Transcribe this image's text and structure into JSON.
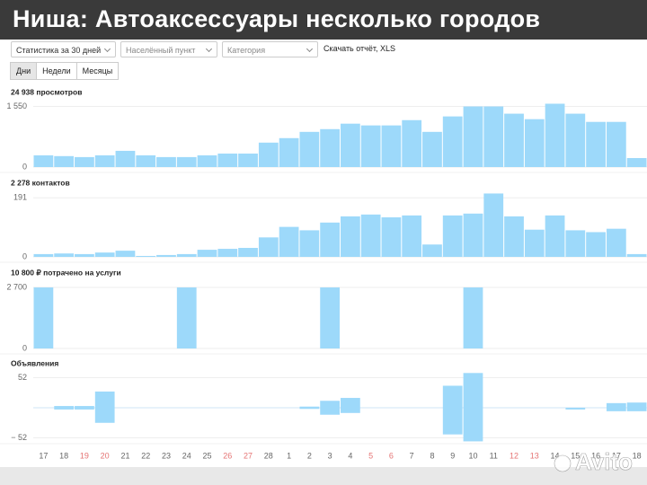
{
  "header": {
    "title": "Ниша: Автоаксессуары несколько городов"
  },
  "filters": {
    "period": "Статистика за 30 дней",
    "location": "Населённый пункт",
    "category": "Категория",
    "download": "Скачать отчёт, XLS"
  },
  "tabs": [
    "Дни",
    "Недели",
    "Месяцы"
  ],
  "active_tab": 0,
  "x_axis": {
    "categories": [
      "17",
      "18",
      "19",
      "20",
      "21",
      "22",
      "23",
      "24",
      "25",
      "26",
      "27",
      "28",
      "1",
      "2",
      "3",
      "4",
      "5",
      "6",
      "7",
      "8",
      "9",
      "10",
      "11",
      "12",
      "13",
      "14",
      "15",
      "16",
      "17",
      "18"
    ],
    "highlighted": [
      2,
      3,
      9,
      10,
      16,
      17,
      23,
      24
    ],
    "highlight_color": "#e57373"
  },
  "chart_data": [
    {
      "type": "bar",
      "title": "24 938 просмотров",
      "color": "#9dd9fa",
      "values": [
        300,
        280,
        255,
        300,
        415,
        300,
        255,
        255,
        300,
        345,
        345,
        625,
        740,
        900,
        970,
        1110,
        1065,
        1065,
        1200,
        900,
        1295,
        1550,
        1550,
        1365,
        1225,
        1620,
        1365,
        1155,
        1155,
        230
      ],
      "ylim": [
        0,
        1700
      ],
      "yticks": [
        0,
        {
          "value": 1550,
          "label": "1 550"
        }
      ]
    },
    {
      "type": "bar",
      "title": "2 278 контактов",
      "color": "#9dd9fa",
      "values": [
        9,
        11,
        9,
        14,
        20,
        3,
        6,
        9,
        23,
        26,
        29,
        63,
        97,
        86,
        111,
        131,
        137,
        128,
        134,
        40,
        134,
        140,
        205,
        131,
        88,
        134,
        86,
        80,
        91,
        9
      ],
      "ylim": [
        0,
        215
      ],
      "yticks": [
        0,
        191
      ]
    },
    {
      "type": "bar",
      "title": "10 800 ₽ потрачено на услуги",
      "color": "#9dd9fa",
      "values": [
        2700,
        0,
        0,
        0,
        0,
        0,
        0,
        2700,
        0,
        0,
        0,
        0,
        0,
        0,
        2700,
        0,
        0,
        0,
        0,
        0,
        0,
        2700,
        0,
        0,
        0,
        0,
        0,
        0,
        0,
        0
      ],
      "ylim": [
        0,
        2900
      ],
      "yticks": [
        0,
        {
          "value": 2700,
          "label": "2 700"
        }
      ]
    },
    {
      "type": "diverging",
      "title": "Объявления",
      "series": [
        {
          "color": "#9dd9fa",
          "values": [
            0,
            3,
            3,
            28,
            0,
            0,
            0,
            0,
            0,
            0,
            0,
            0,
            0,
            2,
            12,
            17,
            0,
            0,
            0,
            0,
            38,
            60,
            0,
            0,
            0,
            0,
            0,
            0,
            8,
            9
          ]
        },
        {
          "color": "#9dd9fa",
          "values": [
            0,
            -3,
            -3,
            -26,
            0,
            0,
            0,
            0,
            0,
            0,
            0,
            0,
            0,
            -2,
            -12,
            -9,
            0,
            0,
            0,
            0,
            -46,
            -58,
            0,
            0,
            0,
            0,
            -3,
            0,
            -6,
            -6
          ]
        }
      ],
      "ylim": [
        -62,
        62
      ],
      "yticks": [
        52,
        {
          "value": -52,
          "label": "− 52"
        }
      ]
    }
  ],
  "watermark": "Avito"
}
